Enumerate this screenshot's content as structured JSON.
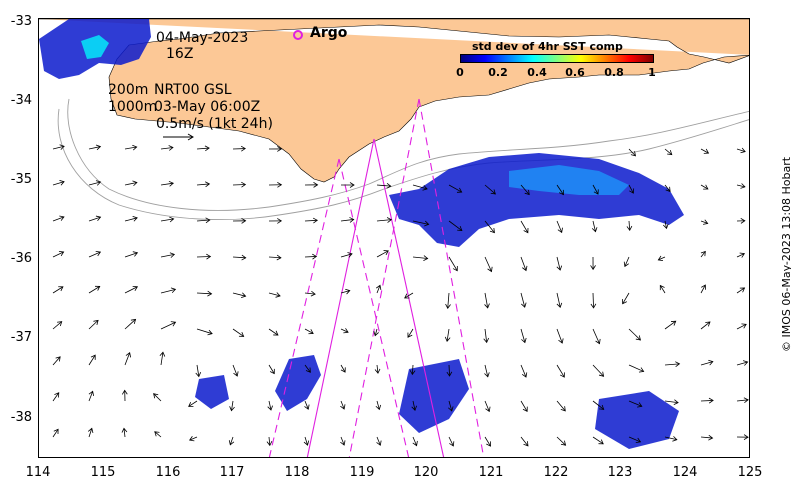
{
  "map": {
    "lon_range": [
      114,
      125
    ],
    "lat_range": [
      -38.5,
      -33
    ],
    "x_ticks": [
      "114",
      "115",
      "116",
      "117",
      "118",
      "119",
      "120",
      "121",
      "122",
      "123",
      "124",
      "125"
    ],
    "y_ticks": [
      "-33",
      "-34",
      "-35",
      "-36",
      "-37",
      "-38"
    ],
    "land_color": "#fcc896",
    "ocean_color": "#ffffff"
  },
  "annotations": {
    "date": "04-May-2023",
    "time": "16Z",
    "line_200m": "200m",
    "source": "NRT00 GSL",
    "line_1000m": "1000m",
    "field_time": "03-May 06:00Z",
    "scale_label": "0.5m/s (1kt 24h)",
    "argo": "Argo"
  },
  "colorbar": {
    "title": "std dev of 4hr SST comp",
    "ticks": [
      "0",
      "0.2",
      "0.4",
      "0.6",
      "0.8",
      "1"
    ],
    "range": [
      0,
      1
    ]
  },
  "credit": "© IMOS 06-May-2023 13:08 Hobart",
  "colors": {
    "altimeter_tracks": "#e020e0",
    "argo_marker": "#e020e0",
    "bathymetry_contours": "#a0a0a0",
    "sst_high_var": "#00ffff",
    "sst_low_var": "#0000cc"
  }
}
